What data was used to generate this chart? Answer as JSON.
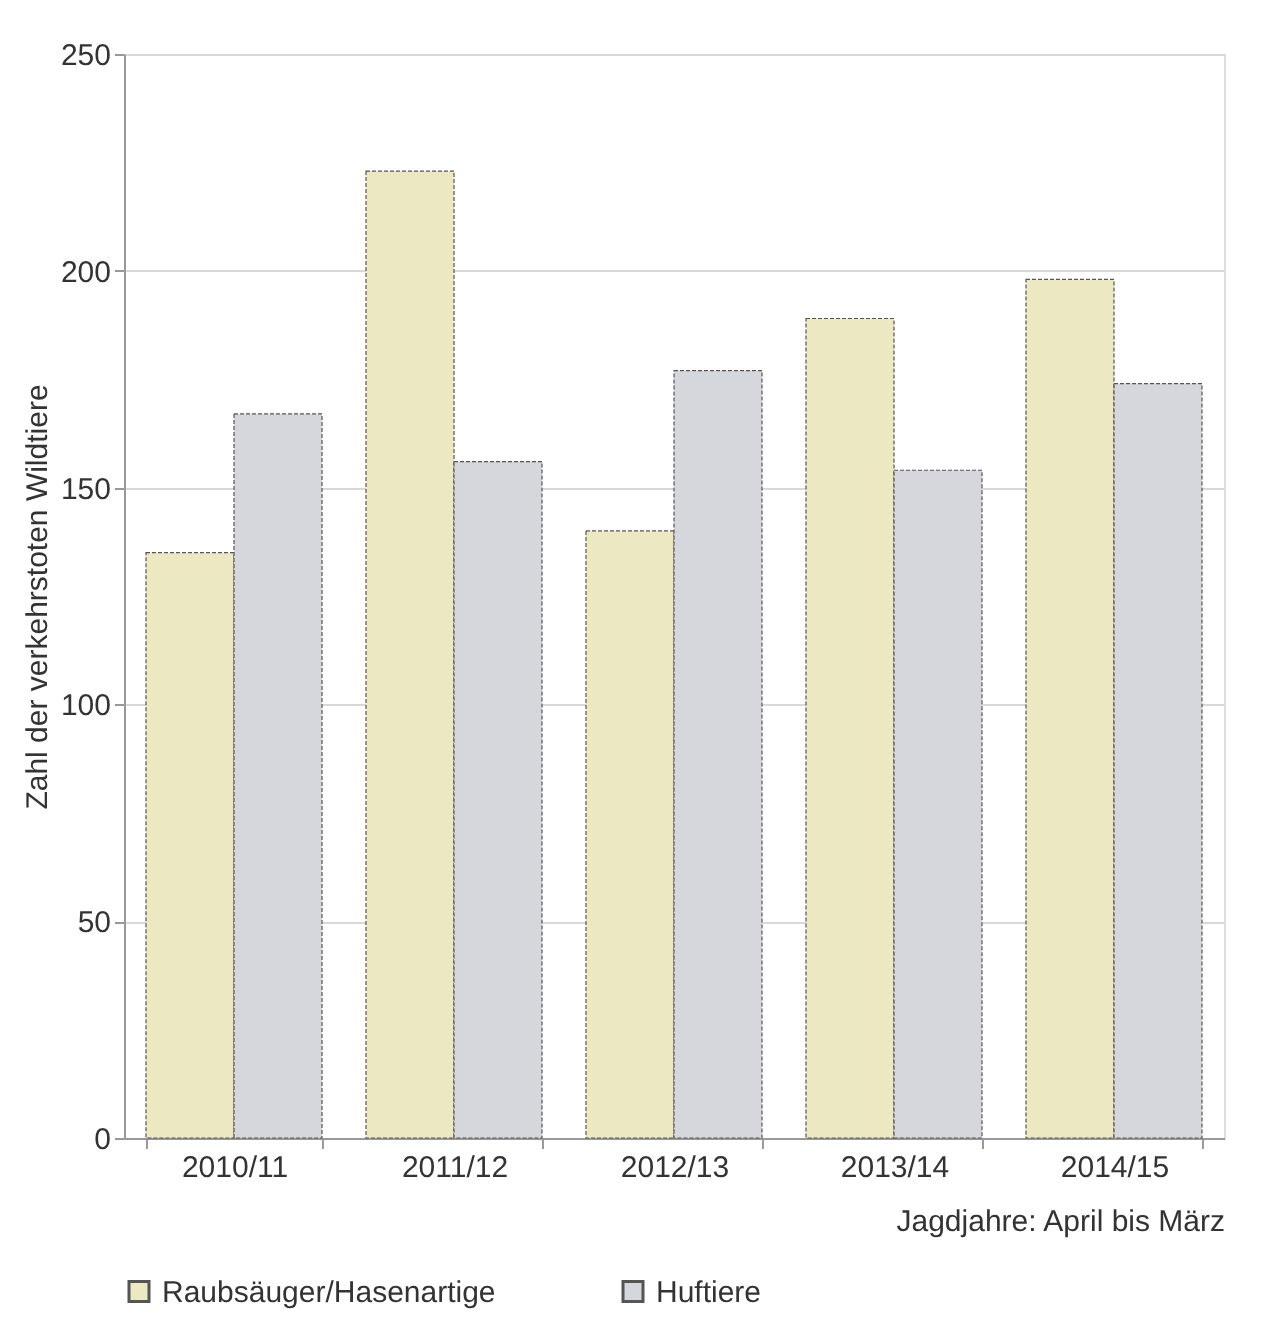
{
  "chart_data": {
    "type": "bar",
    "xlabel": "Jagdjahre: April bis März",
    "ylabel": "Zahl der verkehrstoten Wildtiere",
    "categories": [
      "2010/11",
      "2011/12",
      "2012/13",
      "2013/14",
      "2014/15"
    ],
    "series": [
      {
        "name": "Raubsäuger/Hasenartige",
        "color": "#ebe8c2",
        "values": [
          135,
          223,
          140,
          189,
          198
        ]
      },
      {
        "name": "Huftiere",
        "color": "#d5d7dc",
        "values": [
          167,
          156,
          177,
          154,
          174
        ]
      }
    ],
    "ylim": [
      0,
      250
    ],
    "yticks": [
      0,
      50,
      100,
      150,
      200,
      250
    ],
    "grid": "y",
    "legend": "bottom left"
  }
}
